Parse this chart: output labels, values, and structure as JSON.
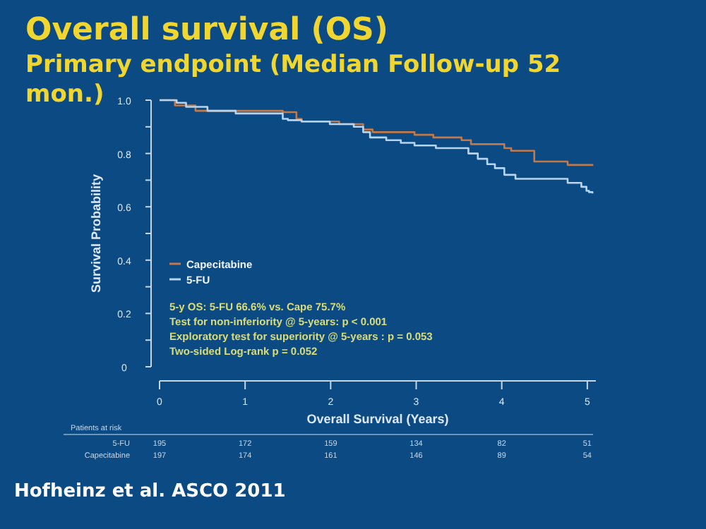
{
  "chart_data": {
    "type": "step",
    "title": "Overall survival (OS)",
    "subtitle": "Primary endpoint (Median Follow-up 52 mon.)",
    "xlabel": "Overall Survival (Years)",
    "ylabel": "Survival Probability",
    "xlim": [
      0,
      5.1
    ],
    "xticks": [
      0,
      1,
      2,
      3,
      4,
      5
    ],
    "ylim": [
      0,
      1.0
    ],
    "yticks": [
      0,
      {
        "value": 0.1,
        "label": null
      },
      {
        "value": 0.2,
        "label": "0.2"
      },
      {
        "value": 0.3,
        "label": null
      },
      {
        "value": 0.4,
        "label": "0.4"
      },
      {
        "value": 0.5,
        "label": null
      },
      {
        "value": 0.6,
        "label": "0.6"
      },
      {
        "value": 0.7,
        "label": null
      },
      {
        "value": 0.8,
        "label": "0.8"
      },
      {
        "value": 0.9,
        "label": null
      },
      {
        "value": 1.0,
        "label": "1.0"
      }
    ],
    "grid": false,
    "legend": "left",
    "marker": "none",
    "line_style": "solid",
    "series": [
      {
        "name": "Capecitabine",
        "color": "#c47a48",
        "x": [
          0,
          0.18,
          0.42,
          1.44,
          1.6,
          1.66,
          2.1,
          2.38,
          2.49,
          2.98,
          3.2,
          3.53,
          3.64,
          4.03,
          4.11,
          4.38,
          4.77,
          5.07
        ],
        "values": [
          1.0,
          0.98,
          0.96,
          0.955,
          0.93,
          0.92,
          0.91,
          0.89,
          0.88,
          0.87,
          0.86,
          0.85,
          0.835,
          0.82,
          0.81,
          0.77,
          0.757,
          0.757
        ]
      },
      {
        "name": "5-FU",
        "color": "#b8d4ee",
        "x": [
          0,
          0.2,
          0.31,
          0.56,
          0.89,
          1.44,
          1.5,
          1.66,
          1.99,
          2.27,
          2.38,
          2.46,
          2.65,
          2.82,
          2.98,
          3.23,
          3.61,
          3.72,
          3.83,
          3.92,
          4.03,
          4.16,
          4.77,
          4.93,
          4.99,
          5.02,
          5.06
        ],
        "values": [
          1.0,
          0.99,
          0.975,
          0.96,
          0.95,
          0.93,
          0.925,
          0.92,
          0.91,
          0.9,
          0.88,
          0.86,
          0.85,
          0.84,
          0.83,
          0.82,
          0.8,
          0.78,
          0.76,
          0.745,
          0.72,
          0.705,
          0.69,
          0.675,
          0.66,
          0.655,
          0.65
        ]
      }
    ],
    "annotations": [
      "5-y OS: 5-FU 66.6% vs. Cape 75.7%",
      "Test for non-inferiority @ 5-years: p < 0.001",
      "Exploratory test for superiority @ 5-years : p = 0.053",
      "Two-sided Log-rank p = 0.052",
      "Patients at risk",
      "5-FU",
      "Capecitabine",
      "Hofheinz et al. ASCO 2011",
      "195",
      "172",
      "159",
      "134",
      "82",
      "51",
      "197",
      "174",
      "161",
      "146",
      "89",
      "54"
    ]
  }
}
